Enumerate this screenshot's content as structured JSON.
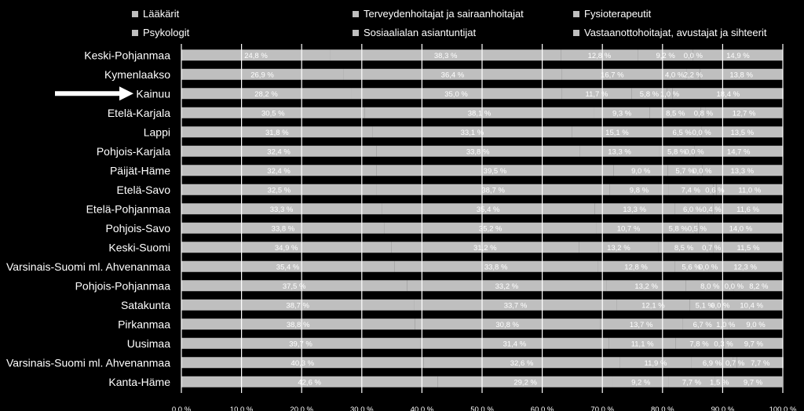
{
  "chart_data": {
    "type": "bar",
    "orientation": "horizontal",
    "stacked": "percent",
    "xlim": [
      0,
      100
    ],
    "x_ticks": [
      "0,0 %",
      "10,0 %",
      "20,0 %",
      "30,0 %",
      "40,0 %",
      "50,0 %",
      "60,0 %",
      "70,0 %",
      "80,0 %",
      "90,0 %",
      "100,0 %"
    ],
    "grid": "vertical",
    "legend_position": "top",
    "bar_color": "#bfbfbf",
    "highlight": "Kainuu",
    "categories": [
      "Keski-Pohjanmaa",
      "Kymenlaakso",
      "Kainuu",
      "Etelä-Karjala",
      "Lappi",
      "Pohjois-Karjala",
      "Päijät-Häme",
      "Etelä-Savo",
      "Etelä-Pohjanmaa",
      "Pohjois-Savo",
      "Keski-Suomi",
      "Varsinais-Suomi ml. Ahvenanmaa",
      "Pohjois-Pohjanmaa",
      "Satakunta",
      "Pirkanmaa",
      "Uusimaa",
      "Varsinais-Suomi ml. Ahvenanmaa",
      "Kanta-Häme"
    ],
    "series": [
      {
        "name": "Lääkärit",
        "values": [
          24.8,
          26.9,
          28.2,
          30.5,
          31.8,
          32.4,
          32.4,
          32.5,
          33.3,
          33.8,
          34.9,
          35.4,
          37.5,
          38.7,
          38.8,
          39.7,
          40.3,
          42.6
        ],
        "labels": [
          "24,8 %",
          "26,9 %",
          "28,2 %",
          "30,5 %",
          "31,8 %",
          "32,4 %",
          "32,4 %",
          "32,5 %",
          "33,3 %",
          "33,8 %",
          "34,9 %",
          "35,4 %",
          "37,5 %",
          "38,7 %",
          "38,8 %",
          "39,7 %",
          "40,3 %",
          "42,6 %"
        ]
      },
      {
        "name": "Terveydenhoitajat ja sairaanhoitajat",
        "values": [
          38.3,
          36.4,
          35.0,
          38.1,
          33.1,
          33.8,
          39.5,
          38.7,
          35.4,
          35.2,
          31.2,
          33.8,
          33.2,
          33.7,
          30.8,
          31.4,
          32.6,
          29.2
        ],
        "labels": [
          "38,3 %",
          "36,4 %",
          "35,0 %",
          "38,1 %",
          "33,1 %",
          "33,8 %",
          "39,5 %",
          "38,7 %",
          "35,4 %",
          "35,2 %",
          "31,2 %",
          "33,8 %",
          "33,2 %",
          "33,7 %",
          "30,8 %",
          "31,4 %",
          "32,6 %",
          "29,2 %"
        ]
      },
      {
        "name": "Fysioterapeutit",
        "values": [
          12.8,
          16.7,
          11.7,
          9.3,
          15.1,
          13.3,
          9.0,
          9.8,
          13.3,
          10.7,
          13.2,
          12.8,
          13.2,
          12.1,
          13.7,
          11.1,
          11.9,
          9.2
        ],
        "labels": [
          "12,8 %",
          "16,7 %",
          "11,7 %",
          "9,3 %",
          "15,1 %",
          "13,3 %",
          "9,0 %",
          "9,8 %",
          "13,3 %",
          "10,7 %",
          "13,2 %",
          "12,8 %",
          "13,2 %",
          "12,1 %",
          "13,7 %",
          "11,1 %",
          "11,9 %",
          "9,2 %"
        ]
      },
      {
        "name": "Psykologit",
        "values": [
          9.2,
          4.0,
          5.8,
          8.5,
          6.5,
          5.8,
          5.7,
          7.4,
          6.0,
          5.8,
          8.5,
          5.6,
          8.0,
          5.1,
          6.7,
          7.8,
          6.9,
          7.7
        ],
        "labels": [
          "9,2 %",
          "4,0 %",
          "5,8 %",
          "8,5 %",
          "6,5 %",
          "5,8 %",
          "5,7 %",
          "7,4 %",
          "6,0 %",
          "5,8 %",
          "8,5 %",
          "5,6 %",
          "8,0 %",
          "5,1 %",
          "6,7 %",
          "7,8 %",
          "6,9 %",
          "7,7 %"
        ]
      },
      {
        "name": "Sosiaalialan asiantuntijat",
        "values": [
          0.0,
          2.2,
          1.0,
          0.8,
          0.0,
          0.0,
          0.0,
          0.6,
          0.4,
          0.5,
          0.7,
          0.0,
          0.0,
          0.0,
          1.0,
          0.3,
          0.7,
          1.5
        ],
        "labels": [
          "0,0 %",
          "2,2 %",
          "1,0 %",
          "0,8 %",
          "0,0 %",
          "0,0 %",
          "0,0 %",
          "0,6 %",
          "0,4 %",
          "0,5 %",
          "0,7 %",
          "0,0 %",
          "0,0 %",
          "0,0 %",
          "1,0 %",
          "0,3 %",
          "0,7 %",
          "1,5 %"
        ]
      },
      {
        "name": "Vastaanottohoitajat, avustajat ja sihteerit",
        "values": [
          14.9,
          13.8,
          18.4,
          12.7,
          13.5,
          14.7,
          13.3,
          11.0,
          11.6,
          14.0,
          11.5,
          12.3,
          8.2,
          10.4,
          9.0,
          9.7,
          7.7,
          9.7
        ],
        "labels": [
          "14,9 %",
          "13,8 %",
          "18,4 %",
          "12,7 %",
          "13,5 %",
          "14,7 %",
          "13,3 %",
          "11,0 %",
          "11,6 %",
          "14,0 %",
          "11,5 %",
          "12,3 %",
          "8,2 %",
          "10,4 %",
          "9,0 %",
          "9,7 %",
          "7,7 %",
          "9,7 %"
        ]
      }
    ]
  }
}
